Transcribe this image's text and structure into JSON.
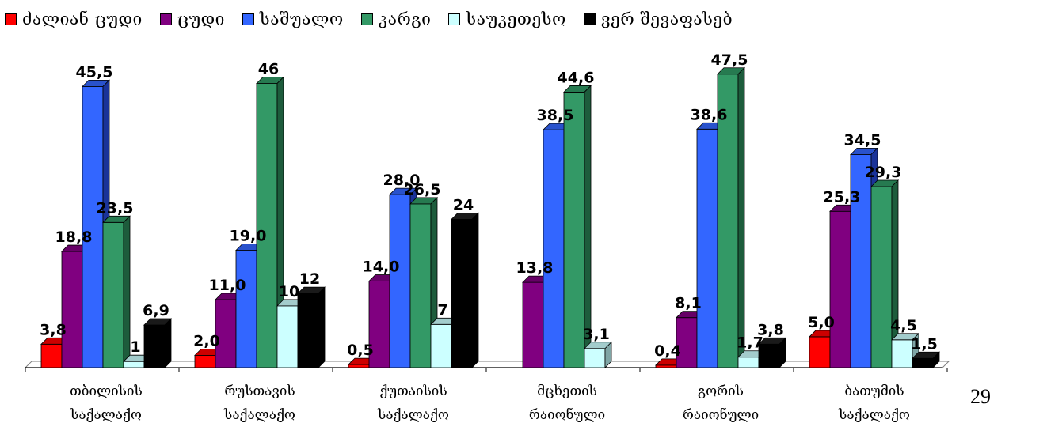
{
  "page_number": "29",
  "chart_data": {
    "type": "bar",
    "title": "",
    "xlabel": "",
    "ylabel": "",
    "ylim": [
      0,
      50
    ],
    "grid": false,
    "legend_position": "top",
    "categories": [
      [
        "თბილისის",
        "საქალაქო"
      ],
      [
        "რუსთავის",
        "საქალაქო"
      ],
      [
        "ქუთაისის",
        "საქალაქო"
      ],
      [
        "მცხეთის",
        "რაიონული"
      ],
      [
        "გორის",
        "რაიონული"
      ],
      [
        "ბათუმის",
        "საქალაქო"
      ]
    ],
    "series": [
      {
        "name": "ძალიან ცუდი",
        "color": "#ff0000",
        "side": "#990000",
        "top": "#cc0000",
        "values": [
          3.8,
          2.0,
          0.5,
          null,
          0.4,
          5.0
        ],
        "labels": [
          "3,8",
          "2,0",
          "0,5",
          "",
          "0,4",
          "5,0"
        ]
      },
      {
        "name": "ცუდი",
        "color": "#800080",
        "side": "#4d004d",
        "top": "#660066",
        "values": [
          18.8,
          11.0,
          14.0,
          13.8,
          8.1,
          25.3
        ],
        "labels": [
          "18,8",
          "11,0",
          "14,0",
          "13,8",
          "8,1",
          "25,3"
        ]
      },
      {
        "name": "საშუალო",
        "color": "#3366ff",
        "side": "#1a3399",
        "top": "#2952cc",
        "values": [
          45.5,
          19.0,
          28.0,
          38.5,
          38.6,
          34.5
        ],
        "labels": [
          "45,5",
          "19,0",
          "28,0",
          "38,5",
          "38,6",
          "34,5"
        ]
      },
      {
        "name": "კარგი",
        "color": "#339966",
        "side": "#1d5c3c",
        "top": "#267a50",
        "values": [
          23.5,
          46,
          26.5,
          44.6,
          47.5,
          29.3
        ],
        "labels": [
          "23,5",
          "46",
          "26,5",
          "44,6",
          "47,5",
          "29,3"
        ]
      },
      {
        "name": "საუკეთესო",
        "color": "#ccffff",
        "side": "#7fa6a6",
        "top": "#a3cccc",
        "values": [
          1,
          10,
          7,
          3.1,
          1.7,
          4.5
        ],
        "labels": [
          "1",
          "10",
          "7",
          "3,1",
          "1,7",
          "4,5"
        ]
      },
      {
        "name": "ვერ შევაფასებ",
        "color": "#000000",
        "side": "#000000",
        "top": "#1a1a1a",
        "values": [
          6.9,
          12,
          24,
          null,
          3.8,
          1.5
        ],
        "labels": [
          "6,9",
          "12",
          "24",
          "",
          "3,8",
          "1,5"
        ]
      }
    ]
  }
}
